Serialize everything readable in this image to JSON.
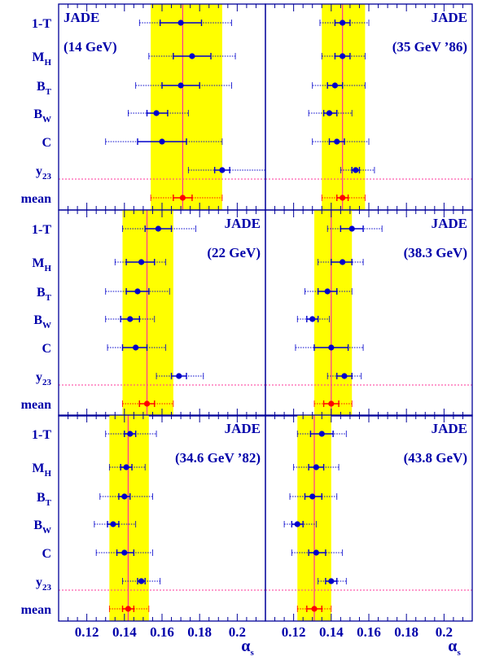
{
  "chart_data": {
    "type": "scatter",
    "colors": {
      "band": "#ffff00",
      "mean_line": "#ff3399",
      "point": "#0000cc",
      "mean_point": "#ff0000",
      "label": "#0000aa",
      "frame": "#000099"
    },
    "row_labels": [
      {
        "main": "1-T",
        "sub": ""
      },
      {
        "main": "M",
        "sub": "H"
      },
      {
        "main": "B",
        "sub": "T"
      },
      {
        "main": "B",
        "sub": "W"
      },
      {
        "main": "C",
        "sub": ""
      },
      {
        "main": "y",
        "sub": "23"
      },
      {
        "main": "mean",
        "sub": ""
      }
    ],
    "xlim": [
      0.105,
      0.215
    ],
    "x_ticks": [
      0.12,
      0.14,
      0.16,
      0.18,
      0.2
    ],
    "x_tick_labels": [
      "0.12",
      "0.14",
      "0.16",
      "0.18",
      "0.2"
    ],
    "xlabel": "α",
    "xlabel_sub": "s",
    "panels": [
      {
        "title": "JADE",
        "subtitle": "(14 GeV)",
        "title_align": "left",
        "mean": 0.171,
        "band": [
          0.154,
          0.192
        ],
        "points": [
          {
            "label": "1-T",
            "value": 0.17,
            "stat": [
              0.159,
              0.181
            ],
            "total": [
              0.148,
              0.197
            ]
          },
          {
            "label": "M_H",
            "value": 0.176,
            "stat": [
              0.166,
              0.186
            ],
            "total": [
              0.153,
              0.199
            ]
          },
          {
            "label": "B_T",
            "value": 0.17,
            "stat": [
              0.16,
              0.18
            ],
            "total": [
              0.146,
              0.197
            ]
          },
          {
            "label": "B_W",
            "value": 0.157,
            "stat": [
              0.152,
              0.163
            ],
            "total": [
              0.142,
              0.174
            ]
          },
          {
            "label": "C",
            "value": 0.16,
            "stat": [
              0.147,
              0.173
            ],
            "total": [
              0.13,
              0.192
            ]
          },
          {
            "label": "y_23",
            "value": 0.192,
            "stat": [
              0.188,
              0.196
            ],
            "total": [
              0.174,
              0.215
            ]
          },
          {
            "label": "mean",
            "value": 0.171,
            "stat": [
              0.166,
              0.176
            ],
            "total": [
              0.154,
              0.192
            ]
          }
        ]
      },
      {
        "title": "JADE",
        "subtitle": "(35 GeV ’86)",
        "title_align": "right",
        "mean": 0.146,
        "band": [
          0.135,
          0.158
        ],
        "points": [
          {
            "label": "1-T",
            "value": 0.146,
            "stat": [
              0.142,
              0.15
            ],
            "total": [
              0.134,
              0.16
            ]
          },
          {
            "label": "M_H",
            "value": 0.146,
            "stat": [
              0.142,
              0.15
            ],
            "total": [
              0.135,
              0.158
            ]
          },
          {
            "label": "B_T",
            "value": 0.142,
            "stat": [
              0.138,
              0.146
            ],
            "total": [
              0.13,
              0.158
            ]
          },
          {
            "label": "B_W",
            "value": 0.139,
            "stat": [
              0.136,
              0.143
            ],
            "total": [
              0.128,
              0.151
            ]
          },
          {
            "label": "C",
            "value": 0.143,
            "stat": [
              0.139,
              0.147
            ],
            "total": [
              0.13,
              0.16
            ]
          },
          {
            "label": "y_23",
            "value": 0.153,
            "stat": [
              0.151,
              0.155
            ],
            "total": [
              0.145,
              0.163
            ]
          },
          {
            "label": "mean",
            "value": 0.146,
            "stat": [
              0.143,
              0.149
            ],
            "total": [
              0.135,
              0.158
            ]
          }
        ]
      },
      {
        "title": "JADE",
        "subtitle": "(22 GeV)",
        "title_align": "right",
        "mean": 0.152,
        "band": [
          0.139,
          0.166
        ],
        "points": [
          {
            "label": "1-T",
            "value": 0.158,
            "stat": [
              0.151,
              0.165
            ],
            "total": [
              0.139,
              0.178
            ]
          },
          {
            "label": "M_H",
            "value": 0.149,
            "stat": [
              0.141,
              0.156
            ],
            "total": [
              0.135,
              0.162
            ]
          },
          {
            "label": "B_T",
            "value": 0.147,
            "stat": [
              0.141,
              0.153
            ],
            "total": [
              0.13,
              0.164
            ]
          },
          {
            "label": "B_W",
            "value": 0.143,
            "stat": [
              0.138,
              0.148
            ],
            "total": [
              0.13,
              0.156
            ]
          },
          {
            "label": "C",
            "value": 0.146,
            "stat": [
              0.139,
              0.152
            ],
            "total": [
              0.131,
              0.162
            ]
          },
          {
            "label": "y_23",
            "value": 0.169,
            "stat": [
              0.165,
              0.173
            ],
            "total": [
              0.157,
              0.182
            ]
          },
          {
            "label": "mean",
            "value": 0.152,
            "stat": [
              0.148,
              0.156
            ],
            "total": [
              0.139,
              0.166
            ]
          }
        ]
      },
      {
        "title": "JADE",
        "subtitle": "(38.3 GeV)",
        "title_align": "right",
        "mean": 0.14,
        "band": [
          0.131,
          0.151
        ],
        "points": [
          {
            "label": "1-T",
            "value": 0.151,
            "stat": [
              0.145,
              0.157
            ],
            "total": [
              0.138,
              0.167
            ]
          },
          {
            "label": "M_H",
            "value": 0.146,
            "stat": [
              0.14,
              0.151
            ],
            "total": [
              0.133,
              0.157
            ]
          },
          {
            "label": "B_T",
            "value": 0.138,
            "stat": [
              0.133,
              0.143
            ],
            "total": [
              0.126,
              0.151
            ]
          },
          {
            "label": "B_W",
            "value": 0.13,
            "stat": [
              0.127,
              0.133
            ],
            "total": [
              0.122,
              0.139
            ]
          },
          {
            "label": "C",
            "value": 0.14,
            "stat": [
              0.131,
              0.149
            ],
            "total": [
              0.121,
              0.157
            ]
          },
          {
            "label": "y_23",
            "value": 0.147,
            "stat": [
              0.143,
              0.151
            ],
            "total": [
              0.138,
              0.156
            ]
          },
          {
            "label": "mean",
            "value": 0.14,
            "stat": [
              0.136,
              0.144
            ],
            "total": [
              0.131,
              0.151
            ]
          }
        ]
      },
      {
        "title": "JADE",
        "subtitle": "(34.6 GeV ’82)",
        "title_align": "right",
        "mean": 0.142,
        "band": [
          0.132,
          0.153
        ],
        "points": [
          {
            "label": "1-T",
            "value": 0.143,
            "stat": [
              0.14,
              0.146
            ],
            "total": [
              0.13,
              0.157
            ]
          },
          {
            "label": "M_H",
            "value": 0.141,
            "stat": [
              0.138,
              0.144
            ],
            "total": [
              0.132,
              0.151
            ]
          },
          {
            "label": "B_T",
            "value": 0.14,
            "stat": [
              0.137,
              0.143
            ],
            "total": [
              0.127,
              0.155
            ]
          },
          {
            "label": "B_W",
            "value": 0.134,
            "stat": [
              0.131,
              0.137
            ],
            "total": [
              0.124,
              0.146
            ]
          },
          {
            "label": "C",
            "value": 0.14,
            "stat": [
              0.136,
              0.145
            ],
            "total": [
              0.125,
              0.155
            ]
          },
          {
            "label": "y_23",
            "value": 0.149,
            "stat": [
              0.147,
              0.151
            ],
            "total": [
              0.139,
              0.159
            ]
          },
          {
            "label": "mean",
            "value": 0.142,
            "stat": [
              0.139,
              0.145
            ],
            "total": [
              0.132,
              0.153
            ]
          }
        ]
      },
      {
        "title": "JADE",
        "subtitle": "(43.8 GeV)",
        "title_align": "right",
        "mean": 0.131,
        "band": [
          0.122,
          0.14
        ],
        "points": [
          {
            "label": "1-T",
            "value": 0.135,
            "stat": [
              0.129,
              0.141
            ],
            "total": [
              0.122,
              0.148
            ]
          },
          {
            "label": "M_H",
            "value": 0.132,
            "stat": [
              0.128,
              0.136
            ],
            "total": [
              0.12,
              0.144
            ]
          },
          {
            "label": "B_T",
            "value": 0.13,
            "stat": [
              0.126,
              0.135
            ],
            "total": [
              0.118,
              0.143
            ]
          },
          {
            "label": "B_W",
            "value": 0.122,
            "stat": [
              0.119,
              0.125
            ],
            "total": [
              0.115,
              0.132
            ]
          },
          {
            "label": "C",
            "value": 0.132,
            "stat": [
              0.128,
              0.137
            ],
            "total": [
              0.119,
              0.146
            ]
          },
          {
            "label": "y_23",
            "value": 0.14,
            "stat": [
              0.137,
              0.143
            ],
            "total": [
              0.133,
              0.148
            ]
          },
          {
            "label": "mean",
            "value": 0.131,
            "stat": [
              0.127,
              0.135
            ],
            "total": [
              0.122,
              0.14
            ]
          }
        ]
      }
    ]
  }
}
